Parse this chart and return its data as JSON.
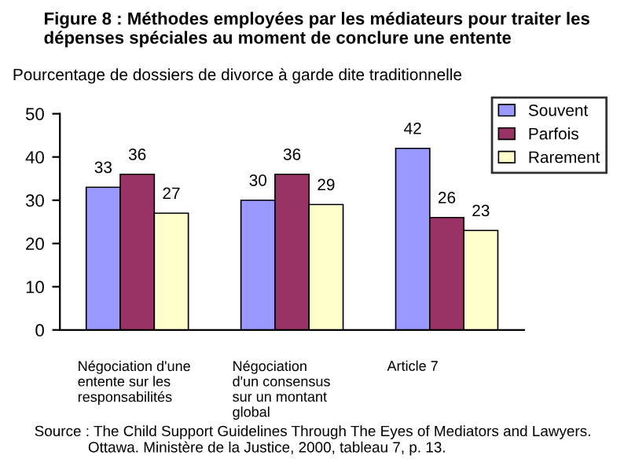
{
  "chart_data": {
    "type": "bar",
    "title": "Figure 8 : Méthodes employées par les médiateurs pour traiter les\ndépenses spéciales au moment de conclure une entente",
    "subtitle": "Pourcentage de dossiers de divorce à garde dite traditionnelle",
    "categories": [
      "Négociation d'une\nentente sur les\nresponsabilités",
      "Négociation\nd'un consensus\nsur un montant\nglobal",
      "Article 7"
    ],
    "series": [
      {
        "name": "Souvent",
        "color": "#9999ff",
        "values": [
          33,
          30,
          42
        ]
      },
      {
        "name": "Parfois",
        "color": "#993366",
        "values": [
          36,
          36,
          26
        ]
      },
      {
        "name": "Rarement",
        "color": "#ffffcc",
        "values": [
          27,
          29,
          23
        ]
      }
    ],
    "ylim": [
      0,
      50
    ],
    "yticks": [
      0,
      10,
      20,
      30,
      40,
      50
    ],
    "grid": false,
    "legend": "top right",
    "data_labels": true,
    "annotations": [
      "Source : The Child Support Guidelines Through The Eyes of Mediators and Lawyers.\n             Ottawa. Ministère de la Justice, 2000, tableau 7, p. 13."
    ]
  }
}
